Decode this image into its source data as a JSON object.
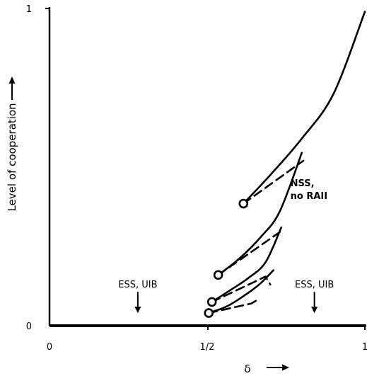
{
  "chart_data": {
    "type": "line",
    "title": "",
    "xlabel": "δ",
    "ylabel": "Level of cooperation",
    "xlim": [
      0,
      1
    ],
    "ylim": [
      0,
      1
    ],
    "x_ticks": [
      {
        "value": 0,
        "label": "0"
      },
      {
        "value": 0.5,
        "label": "1/2"
      },
      {
        "value": 1,
        "label": "1"
      }
    ],
    "y_ticks": [
      {
        "value": 0,
        "label": "0"
      },
      {
        "value": 1,
        "label": "1"
      }
    ],
    "grid": false,
    "axis_arrows": {
      "x": "→",
      "y": "→"
    },
    "series": [
      {
        "style": "solid",
        "x": [
          0.5,
          0.6,
          0.7,
          0.8,
          0.9,
          1.0
        ],
        "y": [
          0.0,
          0.0,
          0.0,
          0.0,
          0.0,
          0.0
        ]
      },
      {
        "style": "solid",
        "x": [
          0.615,
          0.7,
          0.8,
          0.9,
          1.0
        ],
        "y": [
          0.385,
          0.475,
          0.59,
          0.73,
          0.99
        ]
      },
      {
        "style": "solid",
        "x": [
          0.535,
          0.6,
          0.67,
          0.73,
          0.8
        ],
        "y": [
          0.16,
          0.21,
          0.28,
          0.36,
          0.545
        ]
      },
      {
        "style": "solid",
        "x": [
          0.515,
          0.57,
          0.63,
          0.685,
          0.735
        ],
        "y": [
          0.075,
          0.11,
          0.15,
          0.2,
          0.31
        ]
      },
      {
        "style": "solid",
        "x": [
          0.505,
          0.56,
          0.61,
          0.665,
          0.71
        ],
        "y": [
          0.04,
          0.06,
          0.09,
          0.13,
          0.175
        ]
      },
      {
        "style": "dashed",
        "x": [
          0.615,
          0.805
        ],
        "y": [
          0.385,
          0.52
        ]
      },
      {
        "style": "dashed",
        "x": [
          0.535,
          0.73
        ],
        "y": [
          0.16,
          0.295
        ]
      },
      {
        "style": "dashed",
        "x": [
          0.515,
          0.685,
          0.7
        ],
        "y": [
          0.075,
          0.155,
          0.13
        ]
      },
      {
        "style": "dashed",
        "x": [
          0.505,
          0.64,
          0.665
        ],
        "y": [
          0.04,
          0.07,
          0.085
        ]
      }
    ],
    "markers": [
      {
        "x": 0.615,
        "y": 0.385
      },
      {
        "x": 0.535,
        "y": 0.16
      },
      {
        "x": 0.515,
        "y": 0.075
      },
      {
        "x": 0.505,
        "y": 0.04
      }
    ],
    "annotations": [
      {
        "lines": [
          "ESS, UIB"
        ],
        "x": 0.28,
        "y": 0.12,
        "bold": false,
        "arrow_to_y": 0.04
      },
      {
        "lines": [
          "ESS, UIB"
        ],
        "x": 0.84,
        "y": 0.12,
        "bold": false,
        "arrow_to_y": 0.04
      },
      {
        "lines": [
          "NSS,",
          "no RAII"
        ],
        "x": 0.84,
        "y": 0.44,
        "bold": true
      }
    ]
  }
}
